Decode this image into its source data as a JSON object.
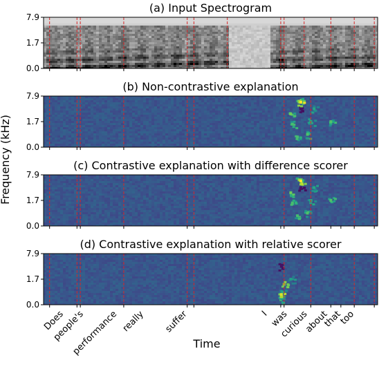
{
  "chart_data": {
    "type": "heatmap",
    "ylabel": "Frequency (kHz)",
    "xlabel": "Time",
    "y_ticks": [
      "7.9",
      "1.7",
      "0.0"
    ],
    "word_labels": [
      "Does",
      "people's",
      "performance",
      "really",
      "suffer",
      "I",
      "was",
      "curious",
      "about",
      "that",
      "too"
    ],
    "word_boundaries": [
      0.018,
      0.1,
      0.11,
      0.24,
      0.43,
      0.45,
      0.71,
      0.72,
      0.8,
      0.86,
      0.89,
      0.93,
      0.99
    ],
    "panels": [
      {
        "title": "(a) Input Spectrogram",
        "colormap": "gray",
        "boundary_positions": [
          0.018,
          0.1,
          0.11,
          0.24,
          0.43,
          0.45,
          0.55,
          0.71,
          0.72,
          0.78,
          0.86,
          0.93,
          0.99
        ],
        "hotspots": []
      },
      {
        "title": "(b) Non-contrastive explanation",
        "colormap": "viridis",
        "boundary_positions": [
          0.018,
          0.1,
          0.11,
          0.24,
          0.43,
          0.45,
          0.72,
          0.8,
          0.93,
          0.99
        ],
        "hotspots": [
          {
            "t": 0.74,
            "f": 0.35,
            "v": 0.78
          },
          {
            "t": 0.745,
            "f": 0.55,
            "v": 0.7
          },
          {
            "t": 0.76,
            "f": 0.8,
            "v": 0.7
          },
          {
            "t": 0.765,
            "f": 0.1,
            "v": 0.85
          },
          {
            "t": 0.77,
            "f": 0.25,
            "v": 0.05
          },
          {
            "t": 0.79,
            "f": 0.75,
            "v": 0.72
          },
          {
            "t": 0.8,
            "f": 0.5,
            "v": 0.62
          },
          {
            "t": 0.81,
            "f": 0.25,
            "v": 0.6
          },
          {
            "t": 0.86,
            "f": 0.5,
            "v": 0.72
          },
          {
            "t": 0.77,
            "f": 0.12,
            "v": 1.0
          }
        ]
      },
      {
        "title": "(c) Contrastive explanation with difference scorer",
        "colormap": "viridis",
        "boundary_positions": [
          0.018,
          0.1,
          0.11,
          0.24,
          0.43,
          0.45,
          0.72,
          0.8,
          0.93,
          0.99
        ],
        "hotspots": [
          {
            "t": 0.74,
            "f": 0.35,
            "v": 0.78
          },
          {
            "t": 0.745,
            "f": 0.55,
            "v": 0.7
          },
          {
            "t": 0.76,
            "f": 0.8,
            "v": 0.7
          },
          {
            "t": 0.765,
            "f": 0.1,
            "v": 0.85
          },
          {
            "t": 0.77,
            "f": 0.25,
            "v": 0.05
          },
          {
            "t": 0.79,
            "f": 0.75,
            "v": 0.72
          },
          {
            "t": 0.8,
            "f": 0.5,
            "v": 0.62
          },
          {
            "t": 0.81,
            "f": 0.25,
            "v": 0.6
          },
          {
            "t": 0.86,
            "f": 0.5,
            "v": 0.72
          },
          {
            "t": 0.77,
            "f": 0.12,
            "v": 1.0
          }
        ]
      },
      {
        "title": "(d) Contrastive explanation with relative scorer",
        "colormap": "viridis",
        "boundary_positions": [
          0.018,
          0.1,
          0.11,
          0.24,
          0.43,
          0.45,
          0.72,
          0.8,
          0.93,
          0.99
        ],
        "hotspots": [
          {
            "t": 0.71,
            "f": 0.9,
            "v": 0.7
          },
          {
            "t": 0.715,
            "f": 0.75,
            "v": 0.6
          },
          {
            "t": 0.715,
            "f": 0.85,
            "v": 0.65
          },
          {
            "t": 0.712,
            "f": 0.8,
            "v": 0.95
          },
          {
            "t": 0.72,
            "f": 0.6,
            "v": 0.85
          },
          {
            "t": 0.71,
            "f": 0.4,
            "v": 0.3
          },
          {
            "t": 0.712,
            "f": 0.25,
            "v": 0.05
          },
          {
            "t": 0.74,
            "f": 0.5,
            "v": 0.55
          }
        ]
      }
    ]
  }
}
